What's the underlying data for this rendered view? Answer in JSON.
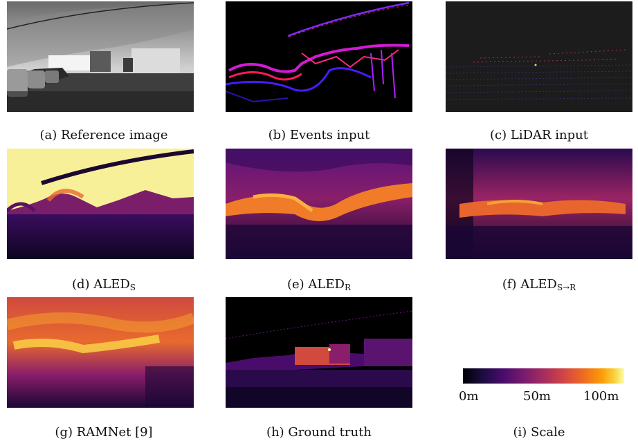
{
  "panels": [
    {
      "id": "a",
      "label": "(a)",
      "name": "Reference image"
    },
    {
      "id": "b",
      "label": "(b)",
      "name": "Events input"
    },
    {
      "id": "c",
      "label": "(c)",
      "name": "LiDAR input"
    },
    {
      "id": "d",
      "label": "(d)",
      "name": "ALED",
      "subscript": "S"
    },
    {
      "id": "e",
      "label": "(e)",
      "name": "ALED",
      "subscript": "R"
    },
    {
      "id": "f",
      "label": "(f)",
      "name": "ALED",
      "subscript": "S→R"
    },
    {
      "id": "g",
      "label": "(g)",
      "name": "RAMNet [9]"
    },
    {
      "id": "h",
      "label": "(h)",
      "name": "Ground truth"
    },
    {
      "id": "i",
      "label": "(i)",
      "name": "Scale"
    }
  ],
  "scale": {
    "ticks": [
      "0m",
      "50m",
      "100m"
    ],
    "colormap": [
      "#000004",
      "#4a0c6b",
      "#a52c60",
      "#ed6925",
      "#fcffa4"
    ]
  }
}
